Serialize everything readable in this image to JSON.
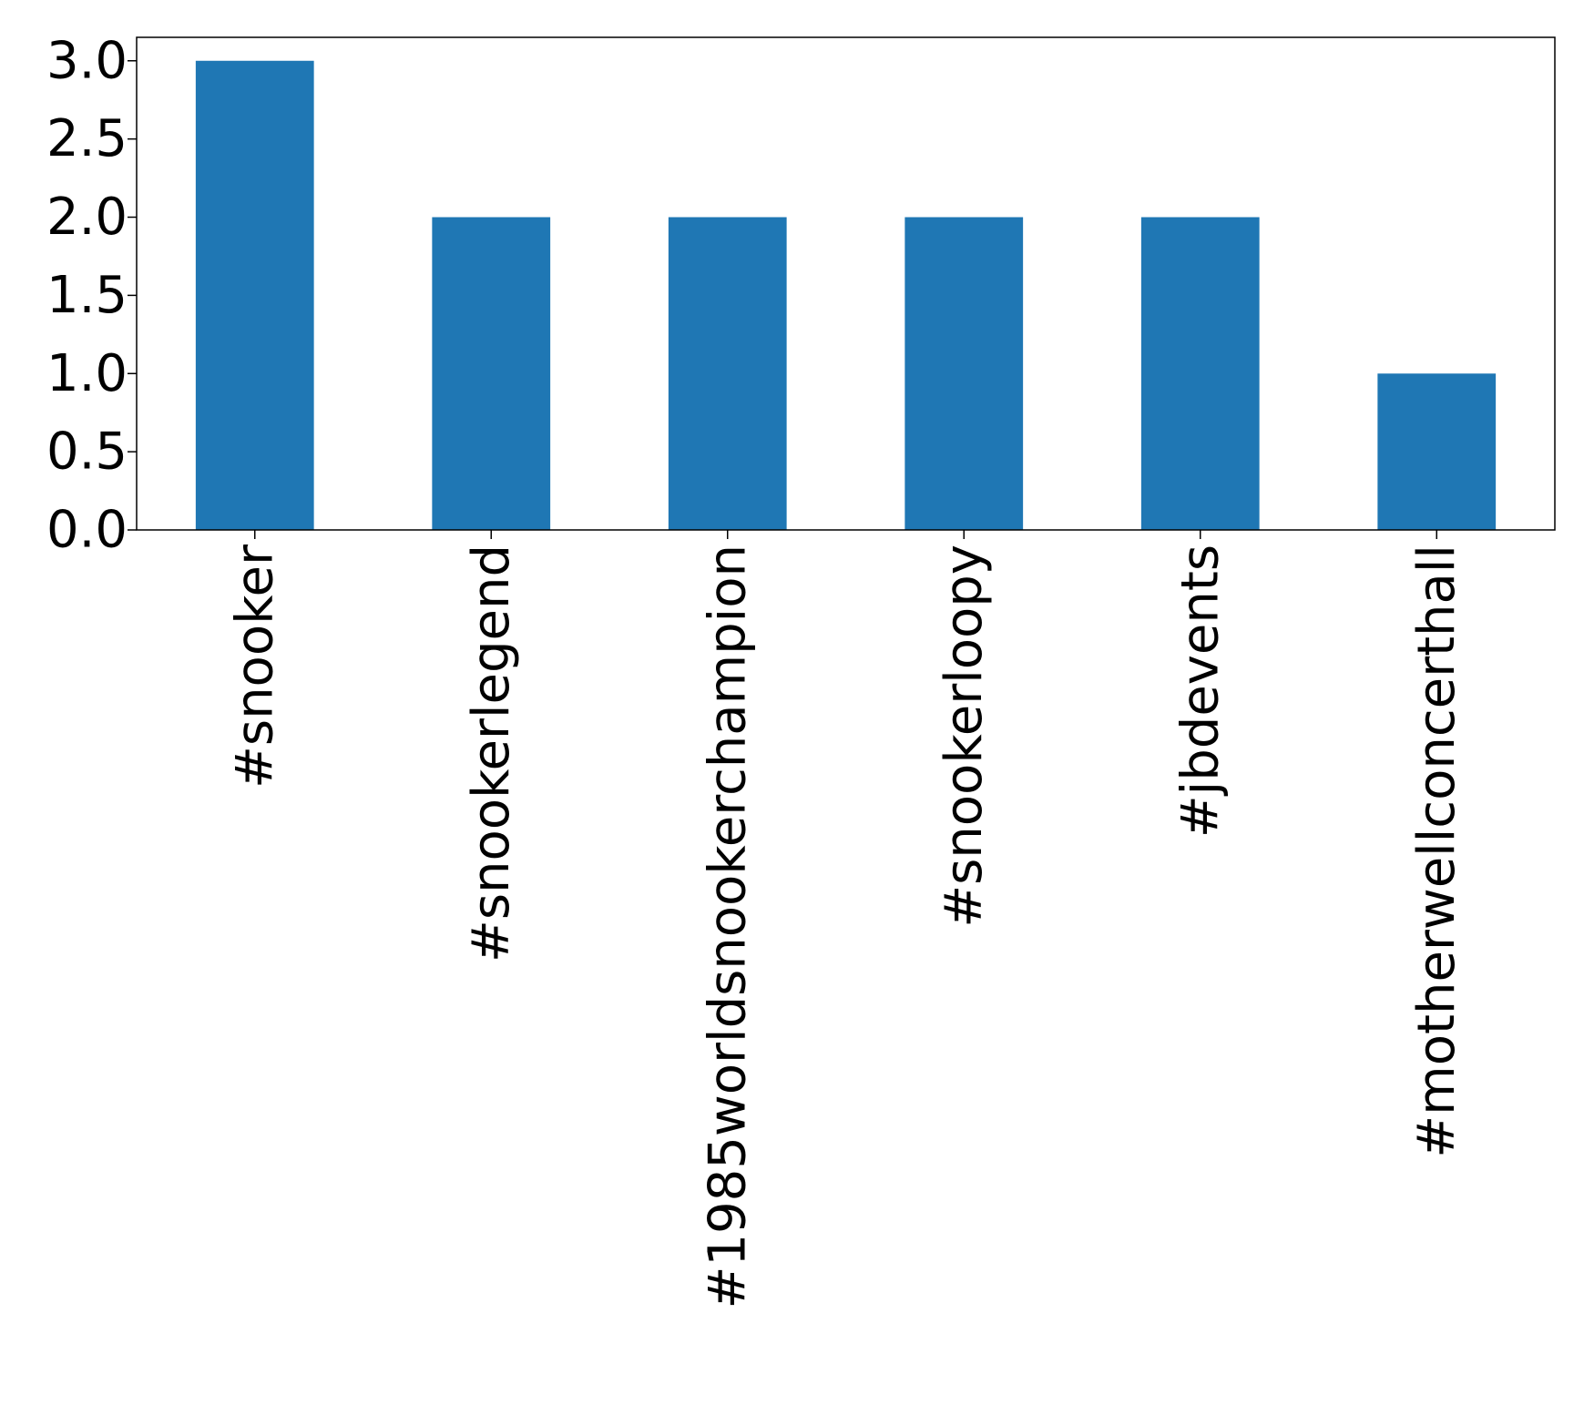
{
  "chart_data": {
    "type": "bar",
    "categories": [
      "#snooker",
      "#snookerlegend",
      "#1985worldsnookerchampion",
      "#snookerloopy",
      "#jbdevents",
      "#motherwellconcerthall"
    ],
    "values": [
      3,
      2,
      2,
      2,
      2,
      1
    ],
    "title": "",
    "xlabel": "",
    "ylabel": "",
    "ylim": [
      0,
      3.15
    ],
    "yticks": [
      "0.0",
      "0.5",
      "1.0",
      "1.5",
      "2.0",
      "2.5",
      "3.0"
    ],
    "grid": false,
    "legend": "none",
    "bar_color": "#1f77b4"
  }
}
